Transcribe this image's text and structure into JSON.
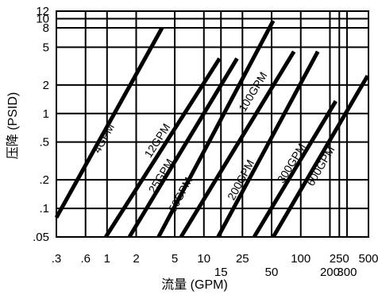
{
  "chart_data": {
    "type": "line",
    "xlabel": "流量 (GPM)",
    "ylabel": "压降 (PSID)",
    "x_scale": "log",
    "y_scale": "log",
    "xlim": [
      0.3,
      500
    ],
    "ylim": [
      0.05,
      12
    ],
    "grid": true,
    "x_ticks": [
      {
        "value": 0.3,
        "label": ".3",
        "row": 0
      },
      {
        "value": 0.6,
        "label": ".6",
        "row": 0
      },
      {
        "value": 1,
        "label": "1",
        "row": 0
      },
      {
        "value": 2,
        "label": "2",
        "row": 0
      },
      {
        "value": 5,
        "label": "5",
        "row": 0
      },
      {
        "value": 10,
        "label": "10",
        "row": 0
      },
      {
        "value": 15,
        "label": "15",
        "row": 1
      },
      {
        "value": 25,
        "label": "25",
        "row": 0
      },
      {
        "value": 50,
        "label": "50",
        "row": 1
      },
      {
        "value": 100,
        "label": "100",
        "row": 0
      },
      {
        "value": 200,
        "label": "200",
        "row": 1
      },
      {
        "value": 250,
        "label": "250",
        "row": 0
      },
      {
        "value": 300,
        "label": "300",
        "row": 1
      },
      {
        "value": 500,
        "label": "500",
        "row": 0
      }
    ],
    "y_ticks": [
      {
        "value": 0.05,
        "label": ".05"
      },
      {
        "value": 0.1,
        "label": ".1"
      },
      {
        "value": 0.2,
        "label": ".2"
      },
      {
        "value": 0.5,
        "label": ".5"
      },
      {
        "value": 1,
        "label": "1"
      },
      {
        "value": 2,
        "label": "2"
      },
      {
        "value": 5,
        "label": "5"
      },
      {
        "value": 8,
        "label": "8"
      },
      {
        "value": 10,
        "label": "10"
      },
      {
        "value": 12,
        "label": "12"
      }
    ],
    "series": [
      {
        "name": "4GPM",
        "points": [
          [
            0.3,
            0.08
          ],
          [
            3.7,
            8
          ]
        ],
        "label_at": [
          0.92,
          0.55
        ]
      },
      {
        "name": "12GPM",
        "points": [
          [
            0.97,
            0.05
          ],
          [
            14.5,
            3.8
          ]
        ],
        "label_at": [
          3.3,
          0.52
        ]
      },
      {
        "name": "25GPM",
        "points": [
          [
            1.7,
            0.05
          ],
          [
            22,
            3.8
          ]
        ],
        "label_at": [
          3.6,
          0.22
        ]
      },
      {
        "name": "50GPM",
        "points": [
          [
            3.4,
            0.05
          ],
          [
            52,
            9.5
          ]
        ],
        "label_at": [
          5.7,
          0.14
        ]
      },
      {
        "name": "100GPM",
        "points": [
          [
            5.8,
            0.05
          ],
          [
            85,
            4.5
          ]
        ],
        "label_at": [
          32,
          1.7
        ]
      },
      {
        "name": "200GPM",
        "points": [
          [
            14,
            0.05
          ],
          [
            150,
            4.5
          ]
        ],
        "label_at": [
          24,
          0.2
        ]
      },
      {
        "name": "300GPM",
        "points": [
          [
            33,
            0.05
          ],
          [
            230,
            1.35
          ]
        ],
        "label_at": [
          80,
          0.3
        ]
      },
      {
        "name": "600GPM",
        "points": [
          [
            52,
            0.05
          ],
          [
            490,
            2.5
          ]
        ],
        "label_at": [
          160,
          0.28
        ]
      }
    ]
  }
}
